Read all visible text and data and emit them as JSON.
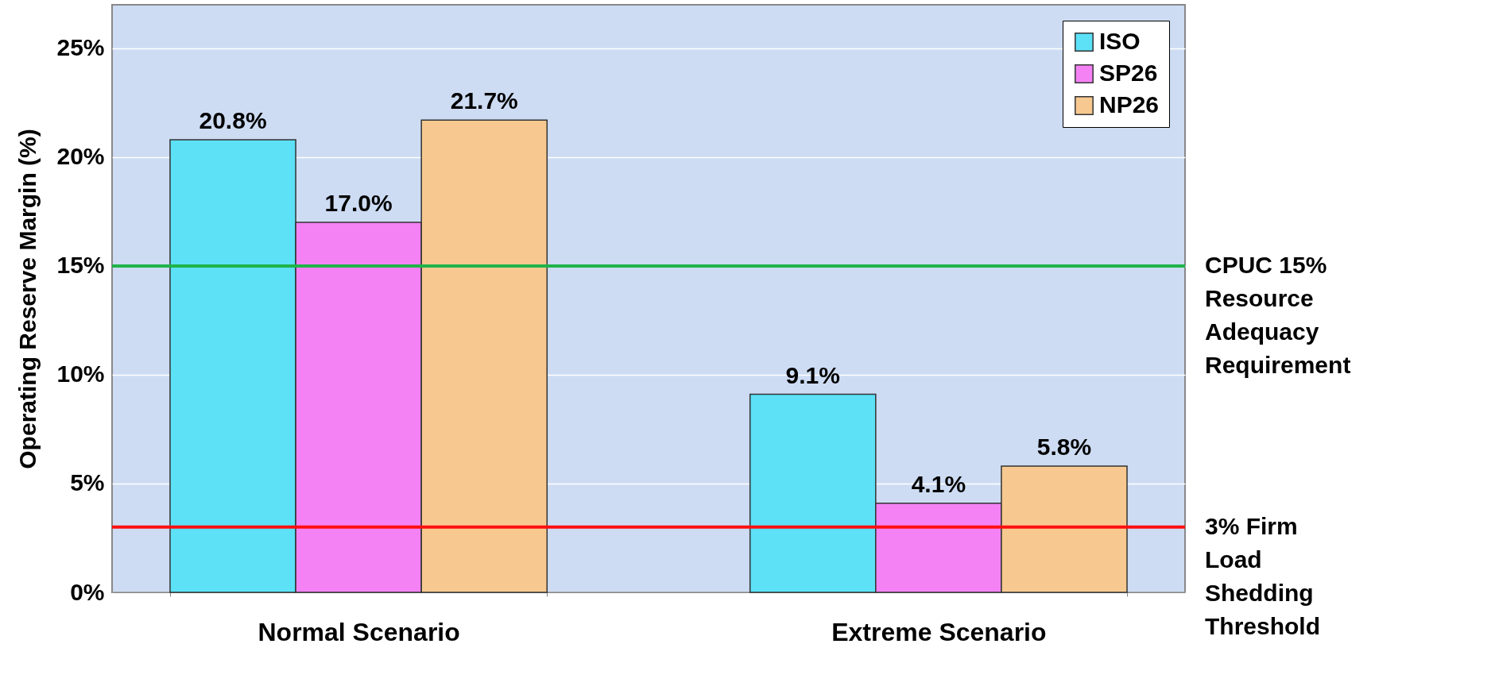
{
  "chart_data": {
    "type": "bar",
    "ylabel": "Operating Reserve Margin (%)",
    "categories": [
      "Normal Scenario",
      "Extreme Scenario"
    ],
    "series": [
      {
        "name": "ISO",
        "color": "#5ce1f7",
        "values": [
          20.8,
          9.1
        ],
        "value_labels": [
          "20.8%",
          "9.1%"
        ]
      },
      {
        "name": "SP26",
        "color": "#f482f4",
        "values": [
          17.0,
          4.1
        ],
        "value_labels": [
          "17.0%",
          "4.1%"
        ]
      },
      {
        "name": "NP26",
        "color": "#f7c990",
        "values": [
          21.7,
          5.8
        ],
        "value_labels": [
          "21.7%",
          "5.8%"
        ]
      }
    ],
    "ylim": [
      0,
      27
    ],
    "yticks": [
      {
        "value": 0,
        "label": "0%"
      },
      {
        "value": 5,
        "label": "5%"
      },
      {
        "value": 10,
        "label": "10%"
      },
      {
        "value": 15,
        "label": "15%"
      },
      {
        "value": 20,
        "label": "20%"
      },
      {
        "value": 25,
        "label": "25%"
      }
    ],
    "grid": true,
    "legend": "top right",
    "ref_lines": [
      {
        "axis": "y",
        "value": 15,
        "label": "CPUC 15%\nResource\nAdequacy\nRequirement",
        "color": "#1fb34a"
      },
      {
        "axis": "y",
        "value": 3,
        "label": "3% Firm\nLoad\nShedding\nThreshold",
        "color": "#ff1010"
      }
    ]
  }
}
